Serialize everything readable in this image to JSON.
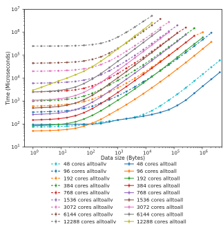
{
  "chart_data": {
    "type": "line",
    "xlabel": "Data size (Bytes)",
    "ylabel": "Time (Microseconds)",
    "x_scale": "log",
    "y_scale": "log",
    "xlim": [
      0.5,
      5000000
    ],
    "ylim": [
      10,
      10000000
    ],
    "x_ticks": [
      {
        "v": 1,
        "base": "10",
        "exp": "0"
      },
      {
        "v": 10,
        "base": "10",
        "exp": "1"
      },
      {
        "v": 100,
        "base": "10",
        "exp": "2"
      },
      {
        "v": 1000,
        "base": "10",
        "exp": "3"
      },
      {
        "v": 10000,
        "base": "10",
        "exp": "4"
      },
      {
        "v": 100000,
        "base": "10",
        "exp": "5"
      },
      {
        "v": 1000000,
        "base": "10",
        "exp": "6"
      }
    ],
    "y_ticks": [
      {
        "v": 10,
        "base": "10",
        "exp": "1"
      },
      {
        "v": 100,
        "base": "10",
        "exp": "2"
      },
      {
        "v": 1000,
        "base": "10",
        "exp": "3"
      },
      {
        "v": 10000,
        "base": "10",
        "exp": "4"
      },
      {
        "v": 100000,
        "base": "10",
        "exp": "5"
      },
      {
        "v": 1000000,
        "base": "10",
        "exp": "6"
      },
      {
        "v": 10000000,
        "base": "10",
        "exp": "7"
      }
    ],
    "grid": false,
    "legend_position": "bottom",
    "series": [
      {
        "name": "48 cores alltoallv",
        "color": "#17becf",
        "dash": true,
        "x": [
          1,
          2,
          4,
          8,
          16,
          32,
          64,
          128,
          256,
          512,
          1024,
          2048,
          4096,
          8192,
          16384,
          32768,
          65536,
          131072,
          262144,
          524288,
          1048576,
          2097152,
          4194304
        ],
        "y": [
          75,
          75,
          76,
          78,
          80,
          85,
          92,
          105,
          120,
          135,
          150,
          170,
          200,
          260,
          380,
          620,
          1100,
          2000,
          3800,
          7500,
          15000,
          30000,
          60000
        ]
      },
      {
        "name": "96 cores alltoallv",
        "color": "#1f77b4",
        "dash": true,
        "x": [
          1,
          2,
          4,
          8,
          16,
          32,
          64,
          128,
          256,
          512,
          1024,
          2048,
          4096,
          8192,
          16384,
          32768,
          65536,
          131072,
          262144,
          524288,
          1048576,
          2097152
        ],
        "y": [
          330,
          340,
          350,
          360,
          380,
          420,
          480,
          600,
          820,
          1150,
          1700,
          2600,
          4200,
          7000,
          12000,
          21000,
          38000,
          70000,
          130000,
          250000,
          480000,
          950000
        ]
      },
      {
        "name": "192 cores alltoallv",
        "color": "#ff7f0e",
        "dash": true,
        "x": [
          1,
          2,
          4,
          8,
          16,
          32,
          64,
          128,
          256,
          512,
          1024,
          2048,
          4096,
          8192,
          16384,
          32768,
          65536,
          131072,
          262144,
          524288,
          1048576
        ],
        "y": [
          600,
          620,
          640,
          680,
          720,
          800,
          950,
          1200,
          1700,
          2500,
          3800,
          6000,
          10000,
          17000,
          30000,
          55000,
          100000,
          190000,
          360000,
          700000,
          1000000
        ]
      },
      {
        "name": "384 cores alltoallv",
        "color": "#2ca02c",
        "dash": true,
        "x": [
          1,
          2,
          4,
          8,
          16,
          32,
          64,
          128,
          256,
          512,
          1024,
          2048,
          4096,
          8192,
          16384,
          32768,
          65536,
          131072,
          262144,
          524288
        ],
        "y": [
          1000,
          1030,
          1060,
          1100,
          1200,
          1350,
          1650,
          2200,
          3200,
          5000,
          8000,
          13000,
          22000,
          38000,
          68000,
          125000,
          230000,
          430000,
          820000,
          1500000
        ]
      },
      {
        "name": "768 cores alltoallv",
        "color": "#d62728",
        "dash": true,
        "x": [
          1,
          2,
          4,
          8,
          16,
          32,
          64,
          128,
          256,
          512,
          1024,
          2048,
          4096,
          8192,
          16384,
          32768,
          65536,
          131072,
          262144
        ],
        "y": [
          2500,
          2550,
          2600,
          2700,
          2850,
          3100,
          3600,
          4600,
          6500,
          10000,
          16000,
          27000,
          46000,
          80000,
          145000,
          270000,
          500000,
          950000,
          1600000
        ]
      },
      {
        "name": "1536 cores alltoallv",
        "color": "#9467bd",
        "dash": true,
        "x": [
          1,
          2,
          4,
          8,
          16,
          32,
          64,
          128,
          256,
          512,
          1024,
          2048,
          4096,
          8192,
          16384,
          32768,
          65536,
          131072
        ],
        "y": [
          6000,
          6100,
          6200,
          6400,
          6700,
          7200,
          8200,
          10000,
          14000,
          21000,
          34000,
          57000,
          98000,
          175000,
          320000,
          600000,
          1100000,
          2000000
        ]
      },
      {
        "name": "3072 cores alltoallv",
        "color": "#e377c2",
        "dash": true,
        "x": [
          1,
          2,
          4,
          8,
          16,
          32,
          64,
          128,
          256,
          512,
          1024,
          2048,
          4096,
          8192,
          16384,
          32768,
          65536
        ],
        "y": [
          20000,
          20200,
          20500,
          21000,
          21800,
          23000,
          25500,
          30000,
          39000,
          56000,
          88000,
          150000,
          260000,
          470000,
          850000,
          1600000,
          2800000
        ]
      },
      {
        "name": "6144 cores alltoallv",
        "color": "#8c564b",
        "dash": true,
        "x": [
          1,
          2,
          4,
          8,
          16,
          32,
          64,
          128,
          256,
          512,
          1024,
          2048,
          4096,
          8192,
          16384,
          32768
        ],
        "y": [
          45000,
          45500,
          46000,
          47000,
          48500,
          51000,
          56000,
          66000,
          85000,
          125000,
          200000,
          340000,
          600000,
          1100000,
          2000000,
          3800000
        ]
      },
      {
        "name": "12288 cores alltoallv",
        "color": "#7f7f7f",
        "dash": true,
        "x": [
          1,
          2,
          4,
          8,
          16,
          32,
          64,
          128,
          256,
          512,
          1024,
          2048,
          4096,
          8192,
          16384
        ],
        "y": [
          250000,
          250000,
          250000,
          252000,
          255000,
          260000,
          270000,
          290000,
          330000,
          420000,
          620000,
          1000000,
          1700000,
          3000000,
          5200000
        ]
      },
      {
        "name": "48 cores alltoall",
        "color": "#1f77b4",
        "dash": false,
        "x": [
          1,
          2,
          4,
          8,
          16,
          32,
          64,
          128,
          256,
          512,
          1024,
          2048,
          4096,
          8192,
          16384,
          32768,
          65536,
          131072,
          262144,
          524288,
          1048576,
          2097152,
          4194304
        ],
        "y": [
          95,
          95,
          96,
          96,
          97,
          98,
          99,
          100,
          105,
          125,
          150,
          170,
          190,
          220,
          260,
          320,
          420,
          650,
          1100,
          2200,
          4500,
          9000,
          18000
        ]
      },
      {
        "name": "96 cores alltoall",
        "color": "#ff7f0e",
        "dash": false,
        "x": [
          1,
          2,
          4,
          8,
          16,
          32,
          64,
          128,
          256,
          512,
          1024,
          2048,
          4096,
          8192,
          16384,
          32768,
          65536,
          131072,
          262144,
          524288,
          1048576,
          2097152
        ],
        "y": [
          50,
          51,
          52,
          54,
          58,
          65,
          80,
          110,
          160,
          260,
          420,
          700,
          1200,
          2100,
          3800,
          7000,
          13000,
          25000,
          48000,
          95000,
          190000,
          380000
        ]
      },
      {
        "name": "192 cores alltoall",
        "color": "#2ca02c",
        "dash": false,
        "x": [
          1,
          2,
          4,
          8,
          16,
          32,
          64,
          128,
          256,
          512,
          1024,
          2048,
          4096,
          8192,
          16384,
          32768,
          65536,
          131072,
          262144,
          524288,
          1048576
        ],
        "y": [
          85,
          87,
          90,
          95,
          105,
          125,
          165,
          240,
          380,
          640,
          1100,
          1900,
          3400,
          6200,
          11500,
          22000,
          42000,
          82000,
          160000,
          310000,
          600000
        ]
      },
      {
        "name": "384 cores alltoall",
        "color": "#d62728",
        "dash": false,
        "x": [
          1,
          2,
          4,
          8,
          16,
          32,
          64,
          128,
          256,
          512,
          1024,
          2048,
          4096,
          8192,
          16384,
          32768,
          65536,
          131072,
          262144,
          524288
        ],
        "y": [
          150,
          155,
          160,
          170,
          190,
          230,
          310,
          470,
          780,
          1350,
          2400,
          4300,
          7900,
          14500,
          27000,
          51000,
          97000,
          185000,
          360000,
          700000
        ]
      },
      {
        "name": "768 cores alltoall",
        "color": "#9467bd",
        "dash": false,
        "x": [
          1,
          2,
          4,
          8,
          16,
          32,
          64,
          128,
          256,
          512,
          1024,
          2048,
          4096,
          8192,
          16384,
          32768,
          65536,
          131072,
          262144
        ],
        "y": [
          260,
          270,
          280,
          300,
          340,
          420,
          580,
          900,
          1500,
          2700,
          4900,
          9000,
          16500,
          31000,
          58000,
          110000,
          210000,
          400000,
          780000
        ]
      },
      {
        "name": "1536 cores alltoall",
        "color": "#8c564b",
        "dash": false,
        "x": [
          1,
          2,
          4,
          8,
          16,
          32,
          64,
          128,
          256,
          512,
          1024,
          2048,
          4096,
          8192,
          16384,
          32768,
          65536,
          131072
        ],
        "y": [
          500,
          520,
          540,
          580,
          660,
          820,
          1150,
          1800,
          3100,
          5700,
          10500,
          19500,
          36500,
          69000,
          130000,
          250000,
          480000,
          920000
        ]
      },
      {
        "name": "3072 cores alltoall",
        "color": "#e377c2",
        "dash": false,
        "x": [
          1,
          2,
          4,
          8,
          16,
          32,
          64,
          128,
          256,
          512,
          1024,
          2048,
          4096,
          8192,
          16384,
          32768,
          65536
        ],
        "y": [
          1100,
          1130,
          1170,
          1250,
          1400,
          1750,
          2400,
          3800,
          6500,
          12000,
          22000,
          41000,
          77000,
          145000,
          275000,
          530000,
          1000000
        ]
      },
      {
        "name": "6144 cores alltoall",
        "color": "#7f7f7f",
        "dash": false,
        "x": [
          1,
          2,
          4,
          8,
          16,
          32,
          64,
          128,
          256,
          512,
          1024,
          2048,
          4096,
          8192,
          16384,
          32768
        ],
        "y": [
          2500,
          2580,
          2700,
          2900,
          3300,
          4100,
          5800,
          9200,
          16000,
          29000,
          55000,
          100000,
          190000,
          360000,
          690000,
          1300000
        ]
      },
      {
        "name": "12288 cores alltoall",
        "color": "#bcbd22",
        "dash": false,
        "x": [
          1,
          2,
          4,
          8,
          16,
          32,
          64,
          128,
          256,
          512,
          1024,
          2048,
          4096,
          8192,
          16384
        ],
        "y": [
          3000,
          4000,
          5500,
          7500,
          10000,
          14000,
          20000,
          32000,
          55000,
          100000,
          190000,
          360000,
          700000,
          1300000,
          2600000
        ]
      }
    ]
  }
}
